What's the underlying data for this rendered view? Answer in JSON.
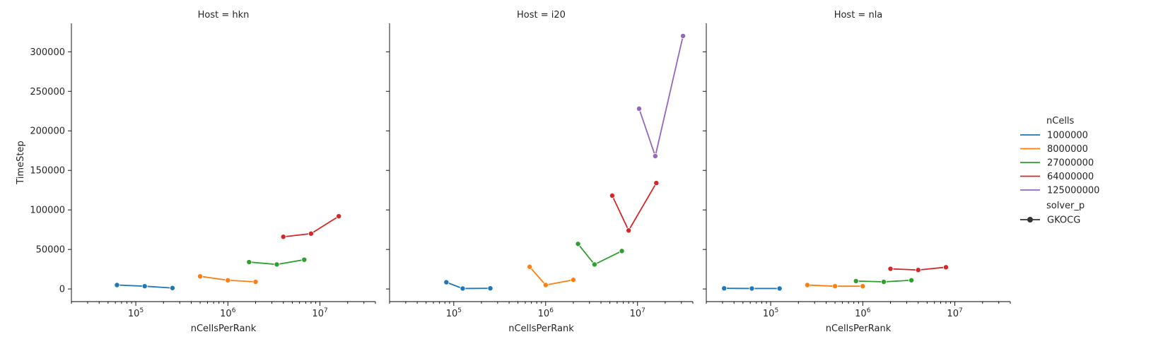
{
  "chart_data": {
    "type": "line",
    "facet_label_prefix": "Host = ",
    "x_scale": "log",
    "xlim": [
      20000,
      40000000
    ],
    "ylim": [
      -16000,
      336000
    ],
    "xlabel": "nCellsPerRank",
    "ylabel": "TimeStep",
    "y_ticks": [
      0,
      50000,
      100000,
      150000,
      200000,
      250000,
      300000
    ],
    "x_major_ticks": [
      {
        "value": 100000,
        "base": "10",
        "exp": "5"
      },
      {
        "value": 1000000,
        "base": "10",
        "exp": "6"
      },
      {
        "value": 10000000,
        "base": "10",
        "exp": "7"
      }
    ],
    "legend": {
      "hue_title": "nCells",
      "hue_entries": [
        {
          "label": "1000000",
          "color": "#1f77b4"
        },
        {
          "label": "8000000",
          "color": "#ff7f0e"
        },
        {
          "label": "27000000",
          "color": "#2ca02c"
        },
        {
          "label": "64000000",
          "color": "#d62728"
        },
        {
          "label": "125000000",
          "color": "#9467bd"
        }
      ],
      "style_title": "solver_p",
      "style_entries": [
        {
          "label": "GKOCG",
          "color": "#333333"
        }
      ]
    },
    "facets": [
      {
        "host": "hkn",
        "series": [
          {
            "nCells": "1000000",
            "color": "#1f77b4",
            "x": [
              62500,
              125000,
              250000
            ],
            "y": [
              5000,
              3500,
              1200
            ]
          },
          {
            "nCells": "8000000",
            "color": "#ff7f0e",
            "x": [
              500000,
              1000000,
              2000000
            ],
            "y": [
              16000,
              11000,
              9000
            ]
          },
          {
            "nCells": "27000000",
            "color": "#2ca02c",
            "x": [
              1700000,
              3400000,
              6750000
            ],
            "y": [
              34000,
              31000,
              37000
            ]
          },
          {
            "nCells": "64000000",
            "color": "#d62728",
            "x": [
              4000000,
              8000000,
              16000000
            ],
            "y": [
              66000,
              70000,
              92000
            ]
          }
        ]
      },
      {
        "host": "i20",
        "series": [
          {
            "nCells": "1000000",
            "color": "#1f77b4",
            "x": [
              83000,
              125000,
              250000
            ],
            "y": [
              8500,
              600,
              800
            ]
          },
          {
            "nCells": "8000000",
            "color": "#ff7f0e",
            "x": [
              670000,
              1000000,
              2000000
            ],
            "y": [
              28000,
              5000,
              11500
            ]
          },
          {
            "nCells": "27000000",
            "color": "#2ca02c",
            "x": [
              2250000,
              3400000,
              6750000
            ],
            "y": [
              57000,
              31000,
              48000
            ]
          },
          {
            "nCells": "64000000",
            "color": "#d62728",
            "x": [
              5300000,
              8000000,
              16000000
            ],
            "y": [
              118000,
              74000,
              134000
            ]
          },
          {
            "nCells": "125000000",
            "color": "#9467bd",
            "x": [
              10400000,
              15600000,
              31250000
            ],
            "y": [
              228000,
              168000,
              320000
            ]
          }
        ]
      },
      {
        "host": "nla",
        "series": [
          {
            "nCells": "1000000",
            "color": "#1f77b4",
            "x": [
              31250,
              62500,
              125000
            ],
            "y": [
              800,
              600,
              600
            ]
          },
          {
            "nCells": "8000000",
            "color": "#ff7f0e",
            "x": [
              250000,
              500000,
              1000000
            ],
            "y": [
              5000,
              3500,
              3500
            ]
          },
          {
            "nCells": "27000000",
            "color": "#2ca02c",
            "x": [
              844000,
              1690000,
              3375000
            ],
            "y": [
              10000,
              9000,
              11000
            ]
          },
          {
            "nCells": "64000000",
            "color": "#d62728",
            "x": [
              2000000,
              4000000,
              8000000
            ],
            "y": [
              25500,
              24000,
              27500
            ]
          }
        ]
      }
    ]
  }
}
